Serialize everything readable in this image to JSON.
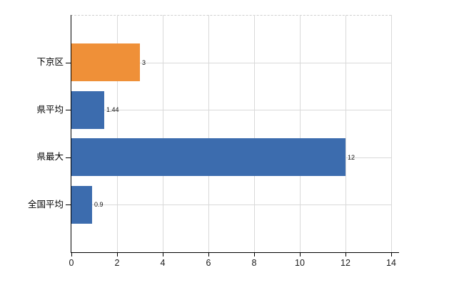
{
  "chart_data": {
    "type": "bar",
    "orientation": "horizontal",
    "title": "",
    "categories": [
      "下京区",
      "県平均",
      "県最大",
      "全国平均"
    ],
    "values": [
      3,
      1.44,
      12,
      0.9
    ],
    "value_labels": [
      "3",
      "1.44",
      "12",
      "0.9"
    ],
    "series": [
      {
        "name": "",
        "values": [
          3,
          1.44,
          12,
          0.9
        ]
      }
    ],
    "bar_colors": [
      "#ef9038",
      "#3c6cae",
      "#3c6cae",
      "#3c6cae"
    ],
    "xlim": [
      0,
      14
    ],
    "x_ticks": [
      0,
      2,
      4,
      6,
      8,
      10,
      12,
      14
    ],
    "x_tick_labels": [
      "0",
      "2",
      "4",
      "6",
      "8",
      "10",
      "12",
      "14"
    ],
    "grid": true,
    "legend": false
  },
  "colors": {
    "bar_orange": "#ef9038",
    "bar_blue": "#3c6cae",
    "gridline": "#d9d9d9",
    "axis": "#000000",
    "text": "#000000",
    "background": "#ffffff"
  }
}
